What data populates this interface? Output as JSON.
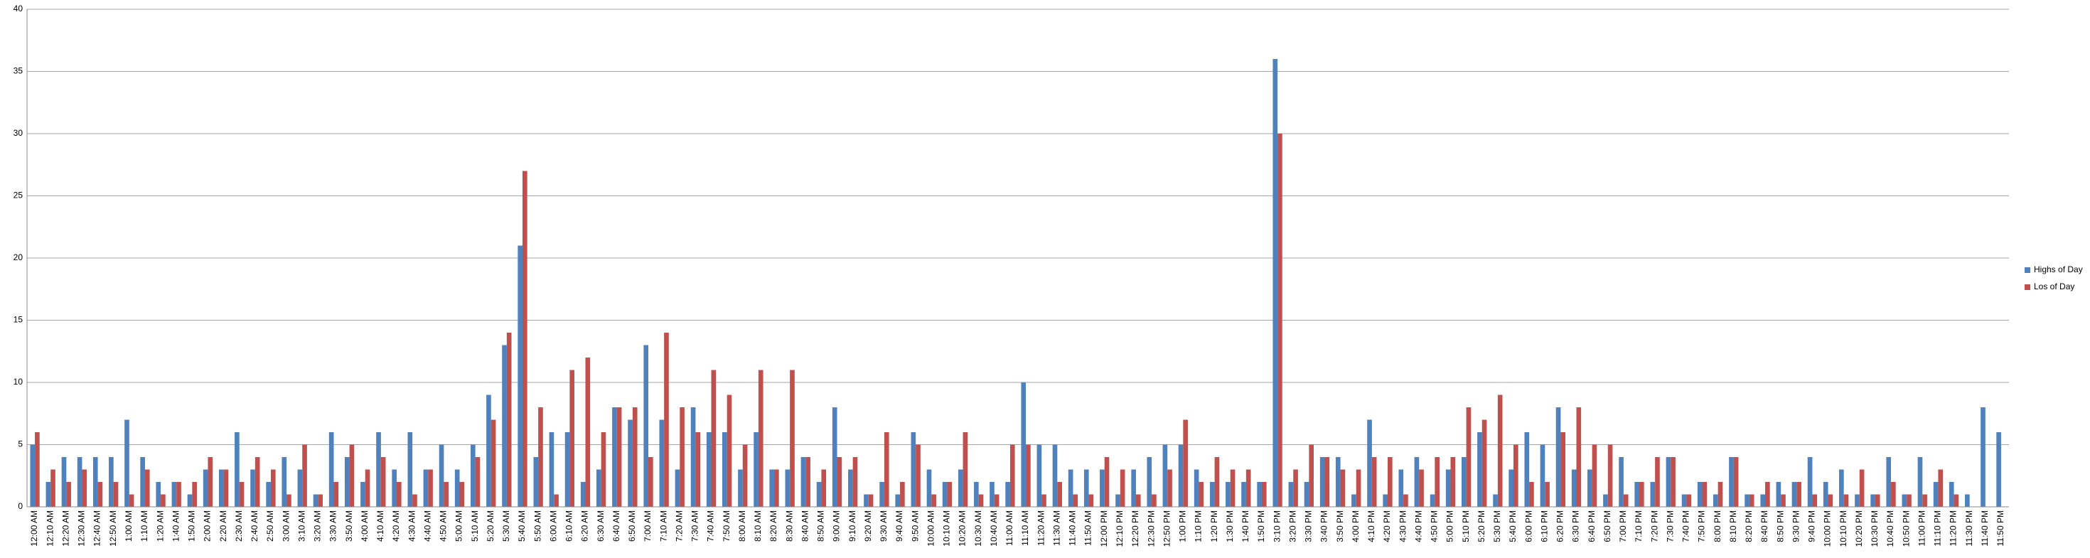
{
  "chart_data": {
    "type": "bar",
    "categories": [
      "12:00 AM",
      "12:10 AM",
      "12:20 AM",
      "12:30 AM",
      "12:40 AM",
      "12:50 AM",
      "1:00 AM",
      "1:10 AM",
      "1:20 AM",
      "1:40 AM",
      "1:50 AM",
      "2:00 AM",
      "2:20 AM",
      "2:30 AM",
      "2:40 AM",
      "2:50 AM",
      "3:00 AM",
      "3:10 AM",
      "3:20 AM",
      "3:30 AM",
      "3:50 AM",
      "4:00 AM",
      "4:10 AM",
      "4:20 AM",
      "4:30 AM",
      "4:40 AM",
      "4:50 AM",
      "5:00 AM",
      "5:10 AM",
      "5:20 AM",
      "5:30 AM",
      "5:40 AM",
      "5:50 AM",
      "6:00 AM",
      "6:10 AM",
      "6:20 AM",
      "6:30 AM",
      "6:40 AM",
      "6:50 AM",
      "7:00 AM",
      "7:10 AM",
      "7:20 AM",
      "7:30 AM",
      "7:40 AM",
      "7:50 AM",
      "8:00 AM",
      "8:10 AM",
      "8:20 AM",
      "8:30 AM",
      "8:40 AM",
      "8:50 AM",
      "9:00 AM",
      "9:10 AM",
      "9:20 AM",
      "9:30 AM",
      "9:40 AM",
      "9:50 AM",
      "10:00 AM",
      "10:10 AM",
      "10:20 AM",
      "10:30 AM",
      "10:40 AM",
      "11:00 AM",
      "11:10 AM",
      "11:20 AM",
      "11:30 AM",
      "11:40 AM",
      "11:50 AM",
      "12:00 PM",
      "12:10 PM",
      "12:20 PM",
      "12:30 PM",
      "12:50 PM",
      "1:00 PM",
      "1:10 PM",
      "1:20 PM",
      "1:30 PM",
      "1:40 PM",
      "1:50 PM",
      "3:10 PM",
      "3:20 PM",
      "3:30 PM",
      "3:40 PM",
      "3:50 PM",
      "4:00 PM",
      "4:10 PM",
      "4:20 PM",
      "4:30 PM",
      "4:40 PM",
      "4:50 PM",
      "5:00 PM",
      "5:10 PM",
      "5:20 PM",
      "5:30 PM",
      "5:40 PM",
      "6:00 PM",
      "6:10 PM",
      "6:20 PM",
      "6:30 PM",
      "6:40 PM",
      "6:50 PM",
      "7:00 PM",
      "7:10 PM",
      "7:20 PM",
      "7:30 PM",
      "7:40 PM",
      "7:50 PM",
      "8:00 PM",
      "8:10 PM",
      "8:20 PM",
      "8:40 PM",
      "8:50 PM",
      "9:30 PM",
      "9:40 PM",
      "10:00 PM",
      "10:10 PM",
      "10:20 PM",
      "10:30 PM",
      "10:40 PM",
      "10:50 PM",
      "11:00 PM",
      "11:10 PM",
      "11:20 PM",
      "11:30 PM",
      "11:40 PM",
      "11:50 PM"
    ],
    "series": [
      {
        "name": "Highs of Day",
        "color": "#4f81bd",
        "values": [
          5,
          2,
          4,
          4,
          4,
          4,
          7,
          4,
          2,
          2,
          1,
          3,
          3,
          6,
          3,
          2,
          4,
          3,
          1,
          6,
          4,
          2,
          6,
          3,
          6,
          3,
          5,
          3,
          5,
          9,
          13,
          21,
          4,
          6,
          6,
          2,
          3,
          8,
          7,
          13,
          7,
          3,
          8,
          6,
          6,
          3,
          6,
          3,
          3,
          4,
          2,
          8,
          3,
          1,
          2,
          1,
          6,
          3,
          2,
          3,
          2,
          2,
          2,
          10,
          5,
          5,
          3,
          3,
          3,
          1,
          3,
          4,
          5,
          5,
          3,
          2,
          2,
          2,
          2,
          36,
          2,
          2,
          4,
          4,
          1,
          7,
          1,
          3,
          4,
          1,
          3,
          4,
          6,
          1,
          3,
          6,
          5,
          8,
          3,
          3,
          1,
          4,
          2,
          2,
          4,
          1,
          2,
          1,
          4,
          1,
          1,
          2,
          2,
          4,
          2,
          3,
          1,
          1,
          4,
          1,
          4,
          2,
          2,
          1,
          8,
          6
        ]
      },
      {
        "name": "Los of Day",
        "color": "#c0504d",
        "values": [
          6,
          3,
          2,
          3,
          2,
          2,
          1,
          3,
          1,
          2,
          2,
          4,
          3,
          2,
          4,
          3,
          1,
          5,
          1,
          2,
          5,
          3,
          4,
          2,
          1,
          3,
          2,
          2,
          4,
          7,
          14,
          27,
          8,
          1,
          11,
          12,
          6,
          8,
          8,
          4,
          14,
          8,
          6,
          11,
          9,
          5,
          11,
          3,
          11,
          4,
          3,
          4,
          4,
          1,
          6,
          2,
          5,
          1,
          2,
          6,
          1,
          1,
          5,
          5,
          1,
          2,
          1,
          1,
          4,
          3,
          1,
          1,
          3,
          7,
          2,
          4,
          3,
          3,
          2,
          30,
          3,
          5,
          4,
          3,
          3,
          4,
          4,
          1,
          3,
          4,
          4,
          8,
          7,
          9,
          5,
          2,
          2,
          6,
          8,
          5,
          5,
          1,
          2,
          4,
          4,
          1,
          2,
          2,
          4,
          1,
          2,
          1,
          2,
          1,
          1,
          1,
          3,
          1,
          2,
          1,
          1,
          3,
          1,
          0,
          0,
          0
        ]
      }
    ],
    "ylim": [
      0,
      40
    ],
    "yticks": [
      0,
      5,
      10,
      15,
      20,
      25,
      30,
      35,
      40
    ],
    "grid": true,
    "legend": "right"
  }
}
